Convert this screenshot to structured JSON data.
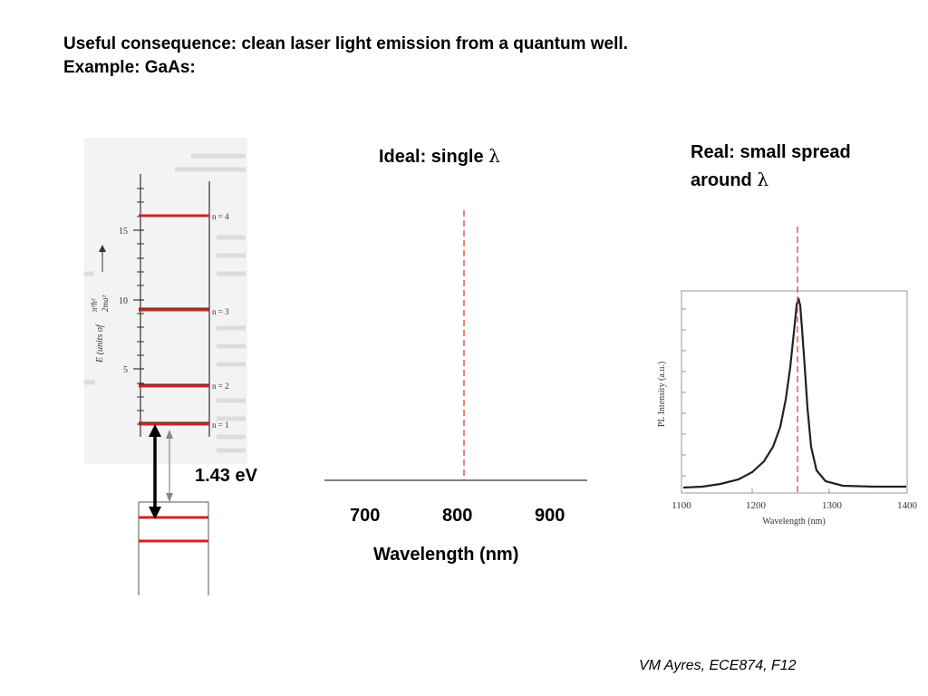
{
  "heading": {
    "line1": "Useful consequence: clean laser light emission from a quantum well.",
    "line2": "Example: GaAs:"
  },
  "energy_diagram": {
    "yaxis_label": "E (units of",
    "yaxis_unit_num": "π²ħ²",
    "yaxis_unit_den": "2ma²",
    "ytick_labels": [
      "5",
      "10",
      "15"
    ],
    "levels": [
      "n = 1",
      "n = 2",
      "n = 3",
      "n = 4"
    ],
    "gap_label": "1.43 eV",
    "highlight_color": "#d42020"
  },
  "ideal_panel": {
    "title_text": "Ideal: single ",
    "title_symbol": "λ",
    "ticks": [
      "700",
      "800",
      "900"
    ],
    "xlabel": "Wavelength (nm)",
    "marker_color": "#e04040"
  },
  "real_panel": {
    "title_line1": "Real: small spread",
    "title_line2_text": "around ",
    "title_symbol": "λ",
    "ylabel": "PL Intensity (a.u.)",
    "xlabel": "Wavelength (nm)",
    "ticks": [
      "1100",
      "1200",
      "1300",
      "1400"
    ]
  },
  "footer": "VM Ayres, ECE874, F12"
}
